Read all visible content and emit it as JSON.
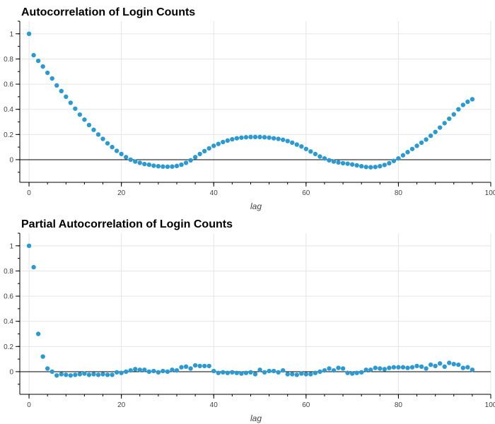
{
  "colors": {
    "point": "#2b9ad2",
    "grid": "#e5e5e5",
    "axis": "#000000",
    "zero_line": "#000000",
    "text": "#444444"
  },
  "chart_data": [
    {
      "type": "scatter",
      "title": "Autocorrelation of Login Counts",
      "xlabel": "lag",
      "ylabel": "",
      "xlim": [
        -2,
        100
      ],
      "ylim": [
        -0.18,
        1.1
      ],
      "xticks": [
        0,
        20,
        40,
        60,
        80,
        100
      ],
      "yticks": [
        0,
        0.2,
        0.4,
        0.6,
        0.8,
        1
      ],
      "xtick_labels": [
        "0",
        "20",
        "40",
        "60",
        "80",
        "100"
      ],
      "ytick_labels": [
        "0",
        "0.2",
        "0.4",
        "0.6",
        "0.8",
        "1"
      ],
      "grid": true,
      "hline": 0,
      "x": [
        0,
        1,
        2,
        3,
        4,
        5,
        6,
        7,
        8,
        9,
        10,
        11,
        12,
        13,
        14,
        15,
        16,
        17,
        18,
        19,
        20,
        21,
        22,
        23,
        24,
        25,
        26,
        27,
        28,
        29,
        30,
        31,
        32,
        33,
        34,
        35,
        36,
        37,
        38,
        39,
        40,
        41,
        42,
        43,
        44,
        45,
        46,
        47,
        48,
        49,
        50,
        51,
        52,
        53,
        54,
        55,
        56,
        57,
        58,
        59,
        60,
        61,
        62,
        63,
        64,
        65,
        66,
        67,
        68,
        69,
        70,
        71,
        72,
        73,
        74,
        75,
        76,
        77,
        78,
        79,
        80,
        81,
        82,
        83,
        84,
        85,
        86,
        87,
        88,
        89,
        90,
        91,
        92,
        93,
        94,
        95,
        96
      ],
      "y": [
        1.0,
        0.83,
        0.785,
        0.74,
        0.69,
        0.645,
        0.59,
        0.545,
        0.5,
        0.452,
        0.405,
        0.358,
        0.318,
        0.275,
        0.237,
        0.2,
        0.165,
        0.13,
        0.1,
        0.07,
        0.045,
        0.02,
        0.0,
        -0.015,
        -0.025,
        -0.035,
        -0.04,
        -0.048,
        -0.052,
        -0.055,
        -0.056,
        -0.055,
        -0.05,
        -0.04,
        -0.025,
        -0.005,
        0.02,
        0.045,
        0.068,
        0.09,
        0.11,
        0.125,
        0.14,
        0.152,
        0.162,
        0.17,
        0.175,
        0.178,
        0.18,
        0.18,
        0.18,
        0.178,
        0.175,
        0.17,
        0.165,
        0.158,
        0.148,
        0.135,
        0.12,
        0.105,
        0.085,
        0.065,
        0.045,
        0.025,
        0.01,
        -0.005,
        -0.015,
        -0.022,
        -0.028,
        -0.032,
        -0.038,
        -0.045,
        -0.052,
        -0.058,
        -0.06,
        -0.058,
        -0.052,
        -0.042,
        -0.028,
        -0.01,
        0.01,
        0.035,
        0.06,
        0.085,
        0.11,
        0.135,
        0.16,
        0.19,
        0.22,
        0.255,
        0.29,
        0.325,
        0.36,
        0.4,
        0.435,
        0.46,
        0.48
      ]
    },
    {
      "type": "scatter",
      "title": "Partial Autocorrelation of Login Counts",
      "xlabel": "lag",
      "ylabel": "",
      "xlim": [
        -2,
        100
      ],
      "ylim": [
        -0.18,
        1.1
      ],
      "xticks": [
        0,
        20,
        40,
        60,
        80,
        100
      ],
      "yticks": [
        0,
        0.2,
        0.4,
        0.6,
        0.8,
        1
      ],
      "xtick_labels": [
        "0",
        "20",
        "40",
        "60",
        "80",
        "100"
      ],
      "ytick_labels": [
        "0",
        "0.2",
        "0.4",
        "0.6",
        "0.8",
        "1"
      ],
      "grid": true,
      "hline": 0,
      "x": [
        0,
        1,
        2,
        3,
        4,
        5,
        6,
        7,
        8,
        9,
        10,
        11,
        12,
        13,
        14,
        15,
        16,
        17,
        18,
        19,
        20,
        21,
        22,
        23,
        24,
        25,
        26,
        27,
        28,
        29,
        30,
        31,
        32,
        33,
        34,
        35,
        36,
        37,
        38,
        39,
        40,
        41,
        42,
        43,
        44,
        45,
        46,
        47,
        48,
        49,
        50,
        51,
        52,
        53,
        54,
        55,
        56,
        57,
        58,
        59,
        60,
        61,
        62,
        63,
        64,
        65,
        66,
        67,
        68,
        69,
        70,
        71,
        72,
        73,
        74,
        75,
        76,
        77,
        78,
        79,
        80,
        81,
        82,
        83,
        84,
        85,
        86,
        87,
        88,
        89,
        90,
        91,
        92,
        93,
        94,
        95,
        96
      ],
      "y": [
        1.0,
        0.83,
        0.3,
        0.12,
        0.025,
        0.0,
        -0.03,
        -0.02,
        -0.025,
        -0.03,
        -0.025,
        -0.02,
        -0.015,
        -0.025,
        -0.02,
        -0.025,
        -0.02,
        -0.025,
        -0.025,
        -0.005,
        -0.01,
        0.0,
        0.01,
        0.02,
        0.015,
        0.015,
        0.0,
        0.005,
        -0.005,
        0.005,
        0.0,
        0.015,
        0.01,
        0.035,
        0.04,
        0.025,
        0.05,
        0.045,
        0.045,
        0.045,
        0.005,
        -0.01,
        -0.005,
        -0.01,
        -0.005,
        -0.01,
        -0.015,
        -0.01,
        -0.005,
        -0.02,
        0.015,
        -0.005,
        0.005,
        0.005,
        -0.005,
        0.01,
        -0.02,
        -0.02,
        -0.025,
        -0.015,
        -0.02,
        -0.02,
        -0.01,
        0.0,
        0.01,
        0.025,
        0.01,
        0.03,
        0.025,
        -0.01,
        -0.015,
        -0.01,
        -0.005,
        0.015,
        0.015,
        0.03,
        0.025,
        0.02,
        0.03,
        0.035,
        0.035,
        0.035,
        0.03,
        0.035,
        0.045,
        0.04,
        0.025,
        0.055,
        0.045,
        0.065,
        0.04,
        0.07,
        0.06,
        0.055,
        0.03,
        0.035,
        0.015
      ]
    }
  ]
}
